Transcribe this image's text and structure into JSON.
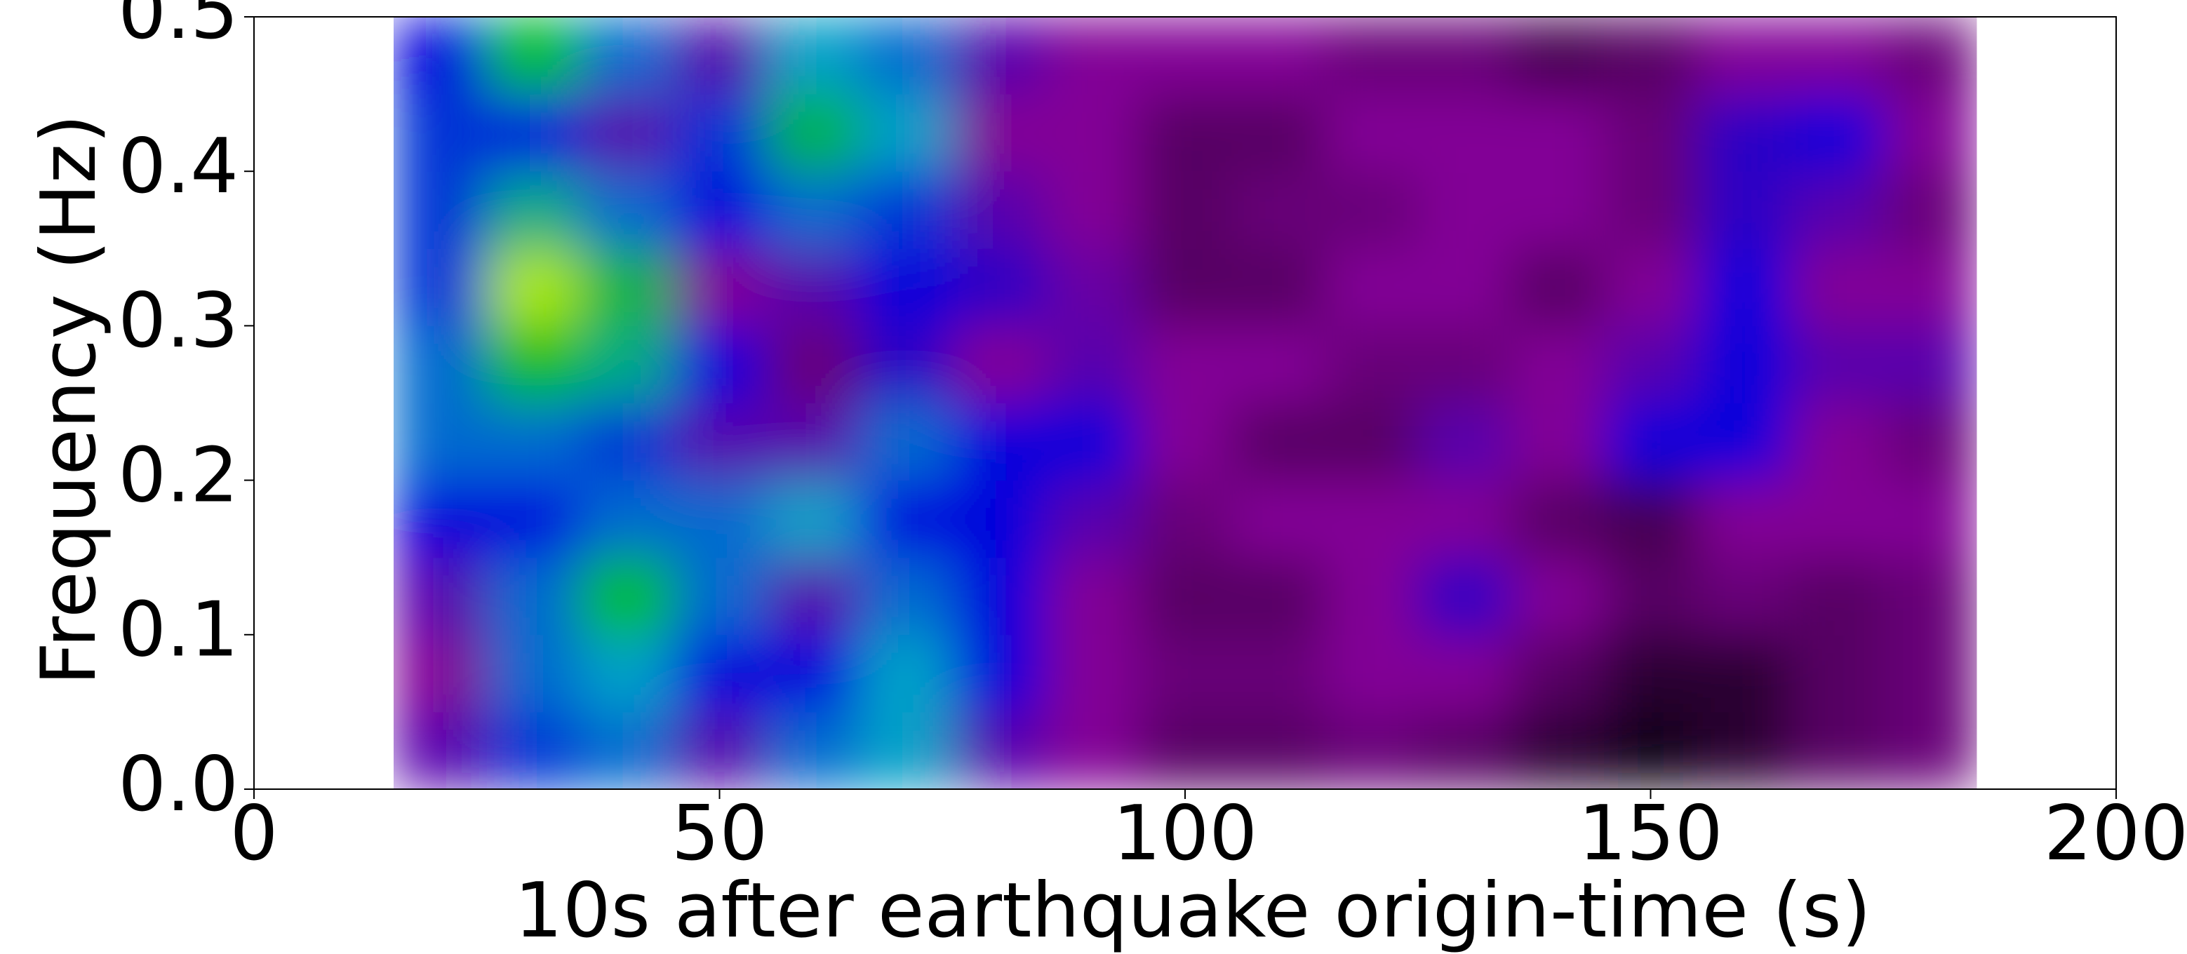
{
  "chart_data": {
    "type": "heatmap",
    "xlabel": "10s after earthquake origin-time (s)",
    "ylabel": "Frequency (Hz)",
    "xlim": [
      0,
      200
    ],
    "ylim": [
      0,
      0.5
    ],
    "xticks": [
      0,
      50,
      100,
      150,
      200
    ],
    "yticks": [
      {
        "value": 0,
        "label": "0.0"
      },
      0.1,
      0.2,
      0.3,
      0.4,
      0.5
    ],
    "colormap": "nipy_spectral",
    "x": [
      20,
      30,
      40,
      50,
      60,
      70,
      80,
      90,
      100,
      110,
      120,
      130,
      140,
      150,
      160,
      170,
      180
    ],
    "y": [
      0.025,
      0.075,
      0.125,
      0.175,
      0.225,
      0.275,
      0.325,
      0.375,
      0.425,
      0.475
    ],
    "z": [
      [
        0.2,
        0.35,
        0.4,
        0.2,
        0.4,
        0.45,
        0.2,
        0.15,
        0.1,
        0.1,
        0.12,
        0.1,
        0.05,
        0.02,
        0.05,
        0.1,
        0.12
      ],
      [
        0.15,
        0.4,
        0.45,
        0.3,
        0.3,
        0.45,
        0.3,
        0.15,
        0.12,
        0.12,
        0.15,
        0.15,
        0.1,
        0.05,
        0.05,
        0.1,
        0.12
      ],
      [
        0.2,
        0.4,
        0.6,
        0.4,
        0.2,
        0.4,
        0.3,
        0.15,
        0.1,
        0.1,
        0.15,
        0.25,
        0.15,
        0.1,
        0.12,
        0.1,
        0.12
      ],
      [
        0.3,
        0.3,
        0.4,
        0.4,
        0.45,
        0.3,
        0.3,
        0.2,
        0.12,
        0.15,
        0.15,
        0.15,
        0.1,
        0.08,
        0.15,
        0.15,
        0.15
      ],
      [
        0.4,
        0.4,
        0.35,
        0.2,
        0.2,
        0.4,
        0.3,
        0.3,
        0.15,
        0.1,
        0.1,
        0.2,
        0.15,
        0.3,
        0.3,
        0.15,
        0.12
      ],
      [
        0.4,
        0.6,
        0.5,
        0.3,
        0.12,
        0.25,
        0.15,
        0.2,
        0.15,
        0.15,
        0.12,
        0.12,
        0.15,
        0.2,
        0.3,
        0.2,
        0.2
      ],
      [
        0.35,
        0.7,
        0.55,
        0.15,
        0.2,
        0.3,
        0.25,
        0.18,
        0.1,
        0.1,
        0.15,
        0.15,
        0.1,
        0.15,
        0.3,
        0.15,
        0.15
      ],
      [
        0.35,
        0.5,
        0.4,
        0.3,
        0.4,
        0.35,
        0.2,
        0.15,
        0.1,
        0.12,
        0.12,
        0.15,
        0.15,
        0.12,
        0.25,
        0.2,
        0.12
      ],
      [
        0.35,
        0.3,
        0.2,
        0.35,
        0.55,
        0.45,
        0.15,
        0.15,
        0.1,
        0.1,
        0.15,
        0.15,
        0.15,
        0.12,
        0.25,
        0.3,
        0.15
      ],
      [
        0.3,
        0.6,
        0.4,
        0.2,
        0.45,
        0.4,
        0.2,
        0.15,
        0.15,
        0.15,
        0.12,
        0.12,
        0.08,
        0.1,
        0.15,
        0.15,
        0.12
      ]
    ]
  }
}
